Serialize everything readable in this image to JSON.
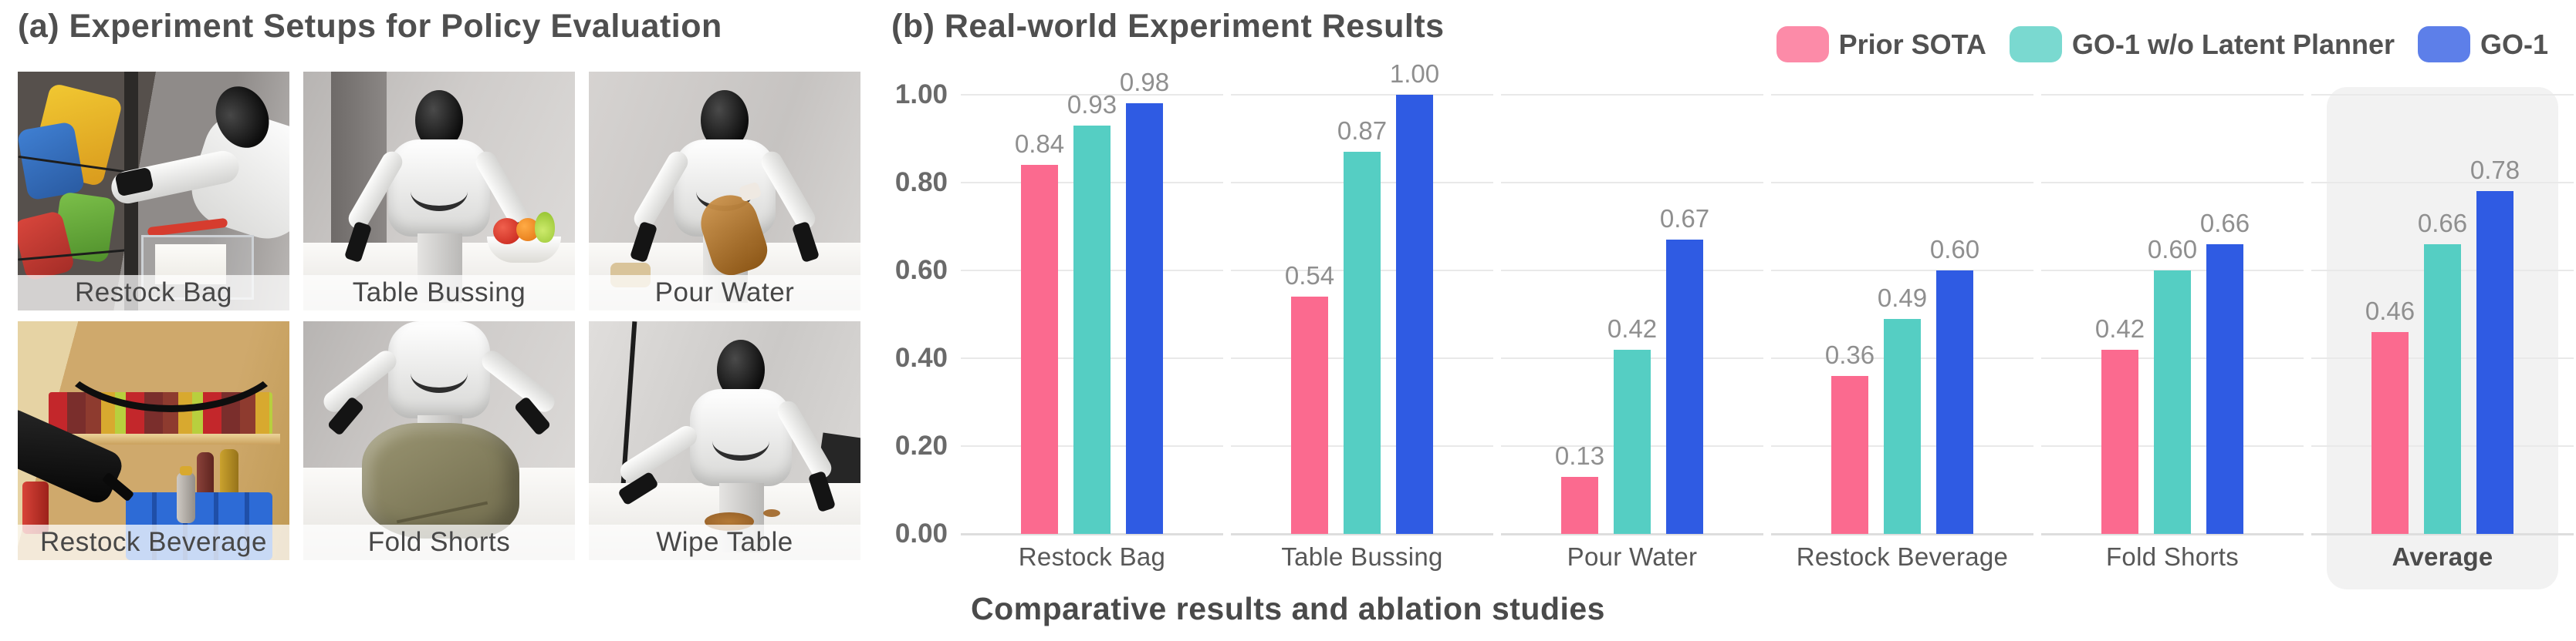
{
  "panel_a": {
    "title": "(a) Experiment Setups for Policy Evaluation",
    "tasks": [
      {
        "label": "Restock Bag"
      },
      {
        "label": "Table Bussing"
      },
      {
        "label": "Pour Water"
      },
      {
        "label": "Restock Beverage"
      },
      {
        "label": "Fold Shorts"
      },
      {
        "label": "Wipe Table"
      }
    ]
  },
  "panel_b": {
    "title": "(b) Real-world Experiment Results",
    "caption": "Comparative results and ablation studies",
    "highlight_color": "#f2f2f2"
  },
  "chart_data": {
    "type": "bar",
    "title": "(b) Real-world Experiment Results",
    "categories": [
      "Restock Bag",
      "Table Bussing",
      "Pour Water",
      "Restock Beverage",
      "Fold Shorts",
      "Average"
    ],
    "series": [
      {
        "name": "Prior SOTA",
        "color": "#FB6A8F",
        "values": [
          0.84,
          0.54,
          0.13,
          0.36,
          0.42,
          0.46
        ]
      },
      {
        "name": "GO-1 w/o Latent Planner",
        "color": "#55CEC3",
        "values": [
          0.93,
          0.87,
          0.42,
          0.49,
          0.6,
          0.66
        ]
      },
      {
        "name": "GO-1",
        "color": "#2F5BE3",
        "values": [
          0.98,
          1.0,
          0.67,
          0.6,
          0.66,
          0.78
        ]
      }
    ],
    "ylim": [
      0,
      1
    ],
    "yticks": [
      0.0,
      0.2,
      0.4,
      0.6,
      0.8,
      1.0
    ],
    "grid": true,
    "legend_position": "top-right",
    "value_labels": true,
    "highlighted_category": "Average"
  }
}
